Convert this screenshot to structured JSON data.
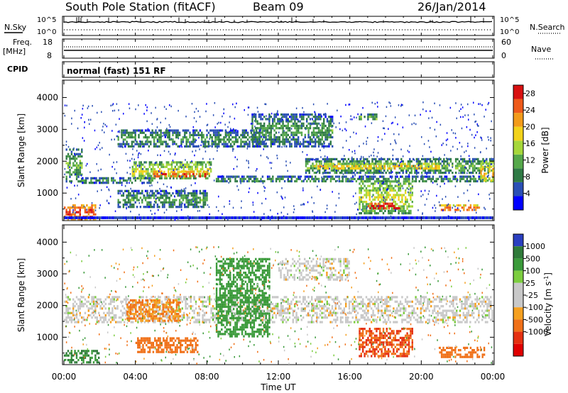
{
  "header": {
    "station": "South Pole Station (fitACF)",
    "beam": "Beam 09",
    "date": "26/Jan/2014"
  },
  "strip_panels": {
    "nsky": {
      "left_label": "N.Sky",
      "left_ticks": [
        "10^5",
        "10^0"
      ],
      "right_label": "N.Search",
      "right_ticks": [
        "10^5",
        "10^0"
      ]
    },
    "freq": {
      "left_label_line1": "Freq.",
      "left_label_line2": "[MHz]",
      "left_ticks": [
        "18",
        "8"
      ],
      "right_label": "Nave",
      "right_ticks": [
        "60",
        "0"
      ]
    },
    "cpid": {
      "label": "CPID",
      "text": "normal (fast) 151 RF"
    }
  },
  "colors": {
    "power_scale": [
      "#0000ff",
      "#2a4fb5",
      "#2f7a45",
      "#55a84a",
      "#a6d73a",
      "#f2d21a",
      "#f29b1a",
      "#ee5a1a",
      "#d81010"
    ],
    "velocity_scale": [
      "#2a3fc0",
      "#2f7a3a",
      "#3a9a3a",
      "#7ccd3f",
      "#c8c8c8",
      "#c8c8c8",
      "#f5a020",
      "#f07018",
      "#e53010",
      "#e00000"
    ]
  },
  "chart_data": [
    {
      "type": "heatmap",
      "panel": "power",
      "ylabel": "Slant Range [km]",
      "xlabel": "",
      "xlim": [
        0,
        24
      ],
      "ylim": [
        180,
        4500
      ],
      "y_ticks": [
        1000,
        2000,
        3000,
        4000
      ],
      "x_ticks": [
        0,
        4,
        8,
        12,
        16,
        20,
        24
      ],
      "colorbar": {
        "label": "Power [dB]",
        "ticks": [
          "4",
          "8",
          "12",
          "16",
          "20",
          "24",
          "28"
        ],
        "range": [
          0,
          30
        ]
      },
      "features": [
        {
          "t_start": 0.0,
          "t_end": 1.8,
          "range_start": 200,
          "range_end": 650,
          "power": 24
        },
        {
          "t_start": 0.1,
          "t_end": 1.0,
          "range_start": 1400,
          "range_end": 2400,
          "power": 10
        },
        {
          "t_start": 1.0,
          "t_end": 5.0,
          "range_start": 1350,
          "range_end": 1500,
          "power": 8
        },
        {
          "t_start": 3.8,
          "t_end": 8.2,
          "range_start": 1450,
          "range_end": 2000,
          "power": 14
        },
        {
          "t_start": 5.0,
          "t_end": 8.0,
          "range_start": 1500,
          "range_end": 1700,
          "power": 24
        },
        {
          "t_start": 3.0,
          "t_end": 8.0,
          "range_start": 550,
          "range_end": 1100,
          "power": 8
        },
        {
          "t_start": 3.0,
          "t_end": 11.0,
          "range_start": 2500,
          "range_end": 3000,
          "power": 8
        },
        {
          "t_start": 10.5,
          "t_end": 15.0,
          "range_start": 2500,
          "range_end": 3500,
          "power": 8
        },
        {
          "t_start": 8.5,
          "t_end": 24.0,
          "range_start": 1350,
          "range_end": 1550,
          "power": 8
        },
        {
          "t_start": 13.5,
          "t_end": 24.0,
          "range_start": 1650,
          "range_end": 2100,
          "power": 10
        },
        {
          "t_start": 14.0,
          "t_end": 21.0,
          "range_start": 1750,
          "range_end": 1950,
          "power": 18
        },
        {
          "t_start": 16.5,
          "t_end": 19.5,
          "range_start": 400,
          "range_end": 1400,
          "power": 14
        },
        {
          "t_start": 17.0,
          "t_end": 18.8,
          "range_start": 500,
          "range_end": 700,
          "power": 28
        },
        {
          "t_start": 21.0,
          "t_end": 23.2,
          "range_start": 450,
          "range_end": 650,
          "power": 22
        },
        {
          "t_start": 16.5,
          "t_end": 17.5,
          "range_start": 3300,
          "range_end": 3500,
          "power": 10
        },
        {
          "t_start": 23.3,
          "t_end": 24.0,
          "range_start": 1400,
          "range_end": 2000,
          "power": 18
        }
      ]
    },
    {
      "type": "heatmap",
      "panel": "velocity",
      "ylabel": "Slant Range [km]",
      "xlabel": "Time UT",
      "xlim": [
        0,
        24
      ],
      "ylim": [
        180,
        4500
      ],
      "y_ticks": [
        1000,
        2000,
        3000,
        4000
      ],
      "x_ticks": [
        0,
        4,
        8,
        12,
        16,
        20,
        24
      ],
      "x_tick_labels": [
        "00:00",
        "04:00",
        "08:00",
        "12:00",
        "16:00",
        "20:00",
        "00:00"
      ],
      "colorbar": {
        "label": "Velocity [m s",
        "label_superscript": "-1",
        "label_close": "]",
        "ticks": [
          "1000",
          "500",
          "100",
          "25",
          "-25",
          "-100",
          "-500",
          "-1000"
        ]
      },
      "features": [
        {
          "t_start": 0.0,
          "t_end": 24.0,
          "range_start": 1500,
          "range_end": 2300,
          "velocity": 0
        },
        {
          "t_start": 0.0,
          "t_end": 2.0,
          "range_start": 200,
          "range_end": 600,
          "velocity": 300
        },
        {
          "t_start": 4.0,
          "t_end": 7.5,
          "range_start": 550,
          "range_end": 1000,
          "velocity": -150
        },
        {
          "t_start": 3.5,
          "t_end": 6.5,
          "range_start": 1500,
          "range_end": 2200,
          "velocity": -60
        },
        {
          "t_start": 8.5,
          "t_end": 11.5,
          "range_start": 1000,
          "range_end": 3500,
          "velocity": 120
        },
        {
          "t_start": 12.0,
          "t_end": 16.0,
          "range_start": 2800,
          "range_end": 3500,
          "velocity": 0
        },
        {
          "t_start": 16.5,
          "t_end": 19.5,
          "range_start": 400,
          "range_end": 1300,
          "velocity": -300
        },
        {
          "t_start": 21.0,
          "t_end": 23.5,
          "range_start": 400,
          "range_end": 700,
          "velocity": -120
        }
      ]
    }
  ]
}
